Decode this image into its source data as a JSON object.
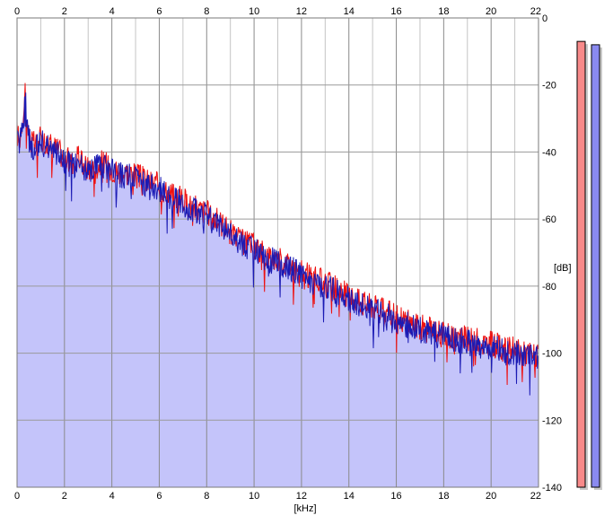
{
  "chart_data": {
    "type": "area",
    "xlabel": "[kHz]",
    "ylabel": "[dB]",
    "xlim": [
      0,
      22
    ],
    "ylim": [
      -140,
      0
    ],
    "x_ticks": [
      "0",
      "2",
      "4",
      "6",
      "8",
      "10",
      "12",
      "14",
      "16",
      "18",
      "20",
      "22"
    ],
    "y_ticks": [
      "0",
      "-20",
      "-40",
      "-60",
      "-80",
      "-100",
      "-120",
      "-140"
    ],
    "grid": true,
    "colors": {
      "fill": "#c4c4fa",
      "channel_1": "#ee1111",
      "channel_2": "#1a1ab4",
      "grid_major": "#8a8a8a",
      "grid_minor": "#c4c4c4",
      "meter_1": "#f88a8a",
      "meter_2": "#8a8af0"
    },
    "series": [
      {
        "x": [
          0,
          0.1,
          0.2,
          0.3,
          0.35,
          0.4,
          0.5,
          0.6,
          0.8,
          1.0,
          1.2,
          1.5,
          1.8,
          2.0,
          2.3,
          2.6,
          3.0,
          3.3,
          3.6,
          4.0,
          4.3,
          4.6,
          5.0,
          5.3,
          5.6,
          6.0,
          6.3,
          6.6,
          7.0,
          7.3,
          7.6,
          8.0,
          8.3,
          8.6,
          9.0,
          9.3,
          9.6,
          10.0,
          10.3,
          10.6,
          11.0,
          11.3,
          11.6,
          12.0,
          12.3,
          12.6,
          13.0,
          13.3,
          13.6,
          14.0,
          14.3,
          14.6,
          15.0,
          15.3,
          15.6,
          16.0,
          16.3,
          16.6,
          17.0,
          17.3,
          17.6,
          18.0,
          18.3,
          18.6,
          19.0,
          19.3,
          19.6,
          20.0,
          20.3,
          20.6,
          21.0,
          21.3,
          21.6,
          22.0
        ],
        "values": [
          -34,
          -37,
          -31,
          -27,
          -20,
          -30,
          -35,
          -37,
          -38,
          -36,
          -37,
          -38,
          -40,
          -42,
          -43,
          -42,
          -45,
          -44,
          -43,
          -45,
          -46,
          -46,
          -47,
          -48,
          -49,
          -50,
          -52,
          -53,
          -54,
          -56,
          -57,
          -58,
          -60,
          -61,
          -64,
          -66,
          -67,
          -68,
          -70,
          -71,
          -72,
          -73,
          -74,
          -76,
          -77,
          -78,
          -79,
          -80,
          -81,
          -83,
          -84,
          -85,
          -86,
          -87,
          -88,
          -89,
          -90,
          -91,
          -92,
          -93,
          -93,
          -94,
          -95,
          -95,
          -96,
          -96,
          -97,
          -97,
          -98,
          -99,
          -99,
          -100,
          -100,
          -101
        ]
      }
    ],
    "meters": [
      {
        "channel": "1",
        "level_db": -7
      },
      {
        "channel": "2",
        "level_db": -8
      }
    ]
  }
}
